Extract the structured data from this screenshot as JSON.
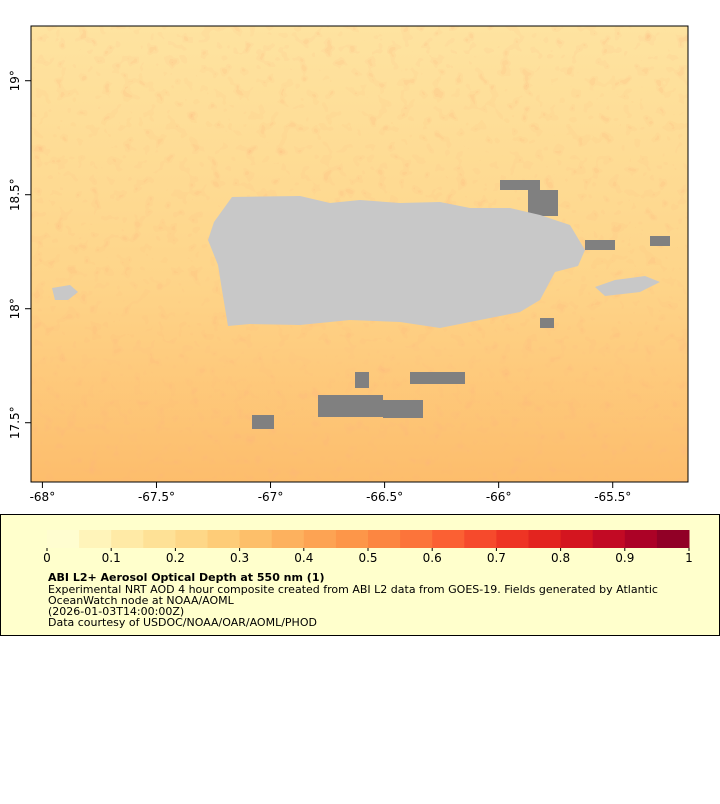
{
  "chart_data": {
    "type": "map",
    "xlim": [
      -68.05,
      -65.17
    ],
    "ylim": [
      17.24,
      19.24
    ],
    "xticks": [
      {
        "value": -68,
        "label": "-68°"
      },
      {
        "value": -67.5,
        "label": "-67.5°"
      },
      {
        "value": -67,
        "label": "-67°"
      },
      {
        "value": -66.5,
        "label": "-66.5°"
      },
      {
        "value": -66,
        "label": "-66°"
      },
      {
        "value": -65.5,
        "label": "-65.5°"
      }
    ],
    "yticks": [
      {
        "value": 17.5,
        "label": "17.5°"
      },
      {
        "value": 18,
        "label": "18°"
      },
      {
        "value": 18.5,
        "label": "18.5°"
      },
      {
        "value": 19,
        "label": "19°"
      }
    ],
    "colorbar": {
      "lim": [
        0,
        1
      ],
      "ticks": [
        0,
        0.1,
        0.2,
        0.3,
        0.4,
        0.5,
        0.6,
        0.7,
        0.8,
        0.9,
        1
      ],
      "colors": [
        "#fffdd0",
        "#fff4ba",
        "#ffeaa6",
        "#fee196",
        "#fed787",
        "#fecc78",
        "#fdbf6a",
        "#fdb15e",
        "#fda353",
        "#fd9649",
        "#fc8641",
        "#fc743a",
        "#fb6033",
        "#f64a2c",
        "#ee3424",
        "#e3241f",
        "#d4151f",
        "#c20a24",
        "#ac0226",
        "#910026"
      ]
    },
    "title": "ABI L2+ Aerosol Optical Depth at 550 nm (1)",
    "description": [
      "Experimental NRT AOD 4 hour composite created from ABI L2 data from GOES-19. Fields generated by Atlantic",
      "OceanWatch node at NOAA/AOML",
      "(2026-01-03T14:00:00Z)",
      "Data courtesy of USDOC/NOAA/OAR/AOML/PHOD"
    ]
  }
}
